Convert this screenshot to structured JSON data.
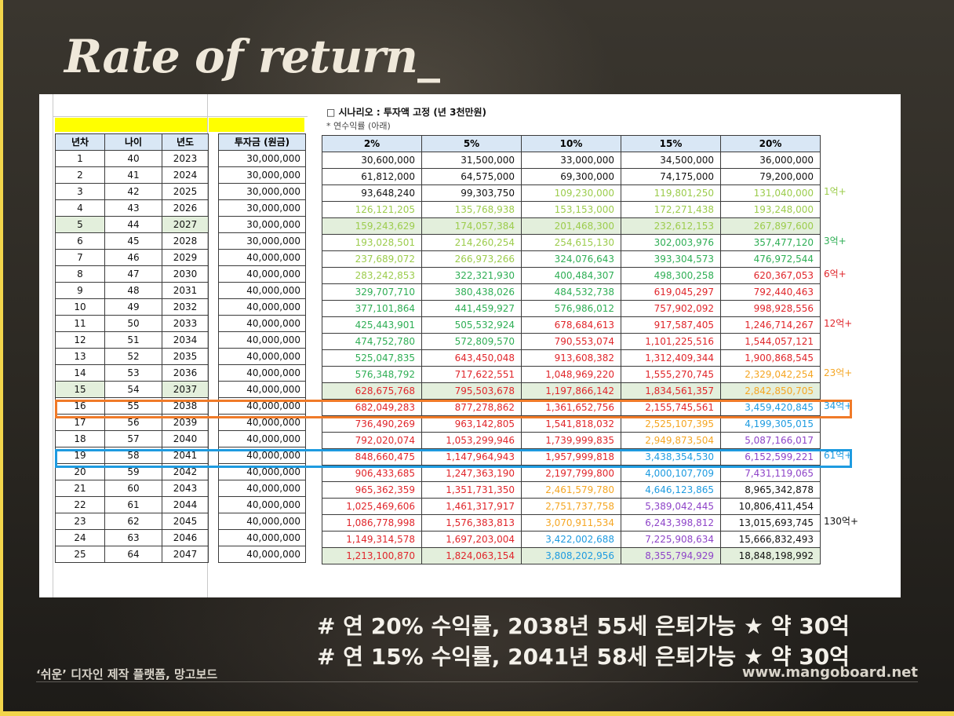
{
  "title": "Rate of return_",
  "scenario": {
    "heading": "□ 시나리오 : 투자액 고정 (년 3천만원)",
    "subnote": "* 연수익률 (아래)"
  },
  "left_table": {
    "headers": [
      "년차",
      "나이",
      "년도",
      "투자금 (원금)"
    ],
    "rows": [
      [
        "1",
        "40",
        "2023",
        "30,000,000"
      ],
      [
        "2",
        "41",
        "2024",
        "30,000,000"
      ],
      [
        "3",
        "42",
        "2025",
        "30,000,000"
      ],
      [
        "4",
        "43",
        "2026",
        "30,000,000"
      ],
      [
        "5",
        "44",
        "2027",
        "30,000,000"
      ],
      [
        "6",
        "45",
        "2028",
        "30,000,000"
      ],
      [
        "7",
        "46",
        "2029",
        "40,000,000"
      ],
      [
        "8",
        "47",
        "2030",
        "40,000,000"
      ],
      [
        "9",
        "48",
        "2031",
        "40,000,000"
      ],
      [
        "10",
        "49",
        "2032",
        "40,000,000"
      ],
      [
        "11",
        "50",
        "2033",
        "40,000,000"
      ],
      [
        "12",
        "51",
        "2034",
        "40,000,000"
      ],
      [
        "13",
        "52",
        "2035",
        "40,000,000"
      ],
      [
        "14",
        "53",
        "2036",
        "40,000,000"
      ],
      [
        "15",
        "54",
        "2037",
        "40,000,000"
      ],
      [
        "16",
        "55",
        "2038",
        "40,000,000"
      ],
      [
        "17",
        "56",
        "2039",
        "40,000,000"
      ],
      [
        "18",
        "57",
        "2040",
        "40,000,000"
      ],
      [
        "19",
        "58",
        "2041",
        "40,000,000"
      ],
      [
        "20",
        "59",
        "2042",
        "40,000,000"
      ],
      [
        "21",
        "60",
        "2043",
        "40,000,000"
      ],
      [
        "22",
        "61",
        "2044",
        "40,000,000"
      ],
      [
        "23",
        "62",
        "2045",
        "40,000,000"
      ],
      [
        "24",
        "63",
        "2046",
        "40,000,000"
      ],
      [
        "25",
        "64",
        "2047",
        "40,000,000"
      ]
    ]
  },
  "right_table": {
    "headers": [
      "2%",
      "5%",
      "10%",
      "15%",
      "20%"
    ],
    "rows": [
      [
        "30,600,000",
        "31,500,000",
        "33,000,000",
        "34,500,000",
        "36,000,000"
      ],
      [
        "61,812,000",
        "64,575,000",
        "69,300,000",
        "74,175,000",
        "79,200,000"
      ],
      [
        "93,648,240",
        "99,303,750",
        "109,230,000",
        "119,801,250",
        "131,040,000"
      ],
      [
        "126,121,205",
        "135,768,938",
        "153,153,000",
        "172,271,438",
        "193,248,000"
      ],
      [
        "159,243,629",
        "174,057,384",
        "201,468,300",
        "232,612,153",
        "267,897,600"
      ],
      [
        "193,028,501",
        "214,260,254",
        "254,615,130",
        "302,003,976",
        "357,477,120"
      ],
      [
        "237,689,072",
        "266,973,266",
        "324,076,643",
        "393,304,573",
        "476,972,544"
      ],
      [
        "283,242,853",
        "322,321,930",
        "400,484,307",
        "498,300,258",
        "620,367,053"
      ],
      [
        "329,707,710",
        "380,438,026",
        "484,532,738",
        "619,045,297",
        "792,440,463"
      ],
      [
        "377,101,864",
        "441,459,927",
        "576,986,012",
        "757,902,092",
        "998,928,556"
      ],
      [
        "425,443,901",
        "505,532,924",
        "678,684,613",
        "917,587,405",
        "1,246,714,267"
      ],
      [
        "474,752,780",
        "572,809,570",
        "790,553,074",
        "1,101,225,516",
        "1,544,057,121"
      ],
      [
        "525,047,835",
        "643,450,048",
        "913,608,382",
        "1,312,409,344",
        "1,900,868,545"
      ],
      [
        "576,348,792",
        "717,622,551",
        "1,048,969,220",
        "1,555,270,745",
        "2,329,042,254"
      ],
      [
        "628,675,768",
        "795,503,678",
        "1,197,866,142",
        "1,834,561,357",
        "2,842,850,705"
      ],
      [
        "682,049,283",
        "877,278,862",
        "1,361,652,756",
        "2,155,745,561",
        "3,459,420,845"
      ],
      [
        "736,490,269",
        "963,142,805",
        "1,541,818,032",
        "2,525,107,395",
        "4,199,305,015"
      ],
      [
        "792,020,074",
        "1,053,299,946",
        "1,739,999,835",
        "2,949,873,504",
        "5,087,166,017"
      ],
      [
        "848,660,475",
        "1,147,964,943",
        "1,957,999,818",
        "3,438,354,530",
        "6,152,599,221"
      ],
      [
        "906,433,685",
        "1,247,363,190",
        "2,197,799,800",
        "4,000,107,709",
        "7,431,119,065"
      ],
      [
        "965,362,359",
        "1,351,731,350",
        "2,461,579,780",
        "4,646,123,865",
        "8,965,342,878"
      ],
      [
        "1,025,469,606",
        "1,461,317,917",
        "2,751,737,758",
        "5,389,042,445",
        "10,806,411,454"
      ],
      [
        "1,086,778,998",
        "1,576,383,813",
        "3,070,911,534",
        "6,243,398,812",
        "13,015,693,745"
      ],
      [
        "1,149,314,578",
        "1,697,203,004",
        "3,422,002,688",
        "7,225,908,634",
        "15,666,832,493"
      ],
      [
        "1,213,100,870",
        "1,824,063,154",
        "3,808,202,956",
        "8,355,794,929",
        "18,848,198,992"
      ]
    ]
  },
  "colors": {
    "lime": "#9ccc4c",
    "green": "#2fae55",
    "red": "#e0262b",
    "orange": "#f5a623",
    "blue": "#1e9be0",
    "purple": "#8e44c8",
    "black": "#111111"
  },
  "markers": [
    {
      "row": 3,
      "label": "1억+",
      "color": "#9ccc4c"
    },
    {
      "row": 6,
      "label": "3억+",
      "color": "#2fae55"
    },
    {
      "row": 8,
      "label": "6억+",
      "color": "#e0262b"
    },
    {
      "row": 11,
      "label": "12억+",
      "color": "#e0262b"
    },
    {
      "row": 14,
      "label": "23억+",
      "color": "#f5a623"
    },
    {
      "row": 16,
      "label": "34억+",
      "color": "#1e9be0"
    },
    {
      "row": 19,
      "label": "61억+",
      "color": "#1e9be0"
    },
    {
      "row": 23,
      "label": "130억+",
      "color": "#111111"
    }
  ],
  "notes": [
    "# 연 20% 수익률, 2038년 55세 은퇴가능 ★ 약 30억",
    "# 연 15% 수익률, 2041년 58세 은퇴가능 ★ 약 30억"
  ],
  "footer": {
    "left": "‘쉬운’ 디자인 제작 플랫폼, 망고보드",
    "right": "www.mangoboard.net"
  }
}
